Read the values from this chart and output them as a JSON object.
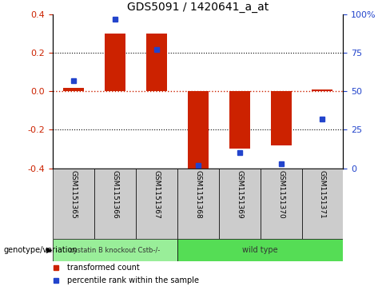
{
  "title": "GDS5091 / 1420641_a_at",
  "samples": [
    "GSM1151365",
    "GSM1151366",
    "GSM1151367",
    "GSM1151368",
    "GSM1151369",
    "GSM1151370",
    "GSM1151371"
  ],
  "bar_values": [
    0.02,
    0.3,
    0.3,
    -0.405,
    -0.3,
    -0.28,
    0.01
  ],
  "dot_percentiles": [
    57,
    97,
    77,
    2,
    10,
    3,
    32
  ],
  "ylim": [
    -0.4,
    0.4
  ],
  "yticks_left": [
    -0.4,
    -0.2,
    0.0,
    0.2,
    0.4
  ],
  "yticks_right": [
    0,
    25,
    50,
    75,
    100
  ],
  "bar_color": "#cc2200",
  "dot_color": "#2244cc",
  "zero_line_color": "#cc2200",
  "genotype_groups": [
    {
      "label": "cystatin B knockout Cstb-/-",
      "start": 0,
      "end": 2,
      "color": "#99ee99"
    },
    {
      "label": "wild type",
      "start": 3,
      "end": 6,
      "color": "#55dd55"
    }
  ],
  "legend_bar_label": "transformed count",
  "legend_dot_label": "percentile rank within the sample",
  "xlabel_genotype": "genotype/variation",
  "bg_color": "#ffffff",
  "tick_label_color_left": "#cc2200",
  "tick_label_color_right": "#2244cc",
  "bar_width": 0.5,
  "sample_box_color": "#cccccc",
  "sample_box_edge": "#000000"
}
